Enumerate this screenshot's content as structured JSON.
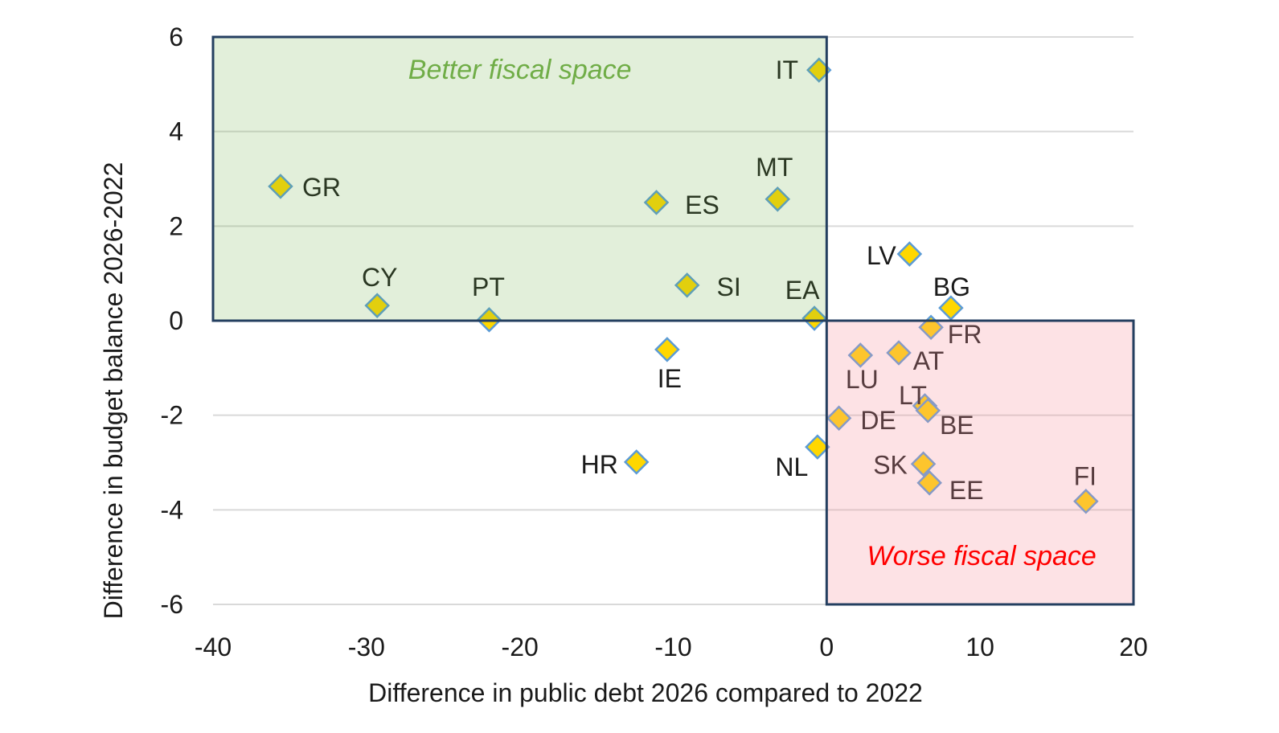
{
  "chart_data": {
    "type": "scatter",
    "title": "",
    "xlabel": "Difference in public debt 2026 compared to 2022",
    "ylabel": "Difference in budget balance 2026-2022",
    "xlim": [
      -40,
      20
    ],
    "ylim": [
      -6,
      6
    ],
    "xticks": [
      -40,
      -30,
      -20,
      -10,
      0,
      10,
      20
    ],
    "yticks": [
      6,
      4,
      2,
      0,
      -2,
      -4,
      -6
    ],
    "grid": "horizontal",
    "legend": "none",
    "marker": "diamond",
    "colors": {
      "marker_fill": "#ffd700",
      "marker_edge": "#5b9bd5",
      "box_border": "#243f60",
      "better_fill": "#e2efda",
      "worse_fill": "#fde2e4",
      "better_text": "#70ad47",
      "worse_text": "#ff0000"
    },
    "regions": [
      {
        "label": "Better fiscal space",
        "x": [
          -40,
          0
        ],
        "y": [
          0,
          6
        ]
      },
      {
        "label": "Worse fiscal space",
        "x": [
          0,
          20
        ],
        "y": [
          -6,
          0
        ]
      }
    ],
    "points": [
      {
        "label": "IT",
        "x": -0.5,
        "y": 5.3
      },
      {
        "label": "GR",
        "x": -35.6,
        "y": 2.84
      },
      {
        "label": "ES",
        "x": -11.1,
        "y": 2.5
      },
      {
        "label": "MT",
        "x": -3.2,
        "y": 2.57
      },
      {
        "label": "LV",
        "x": 5.4,
        "y": 1.41
      },
      {
        "label": "CY",
        "x": -29.3,
        "y": 0.32
      },
      {
        "label": "PT",
        "x": -22.0,
        "y": 0.02
      },
      {
        "label": "SI",
        "x": -9.1,
        "y": 0.75
      },
      {
        "label": "EA",
        "x": -0.8,
        "y": 0.05
      },
      {
        "label": "BG",
        "x": 8.1,
        "y": 0.27
      },
      {
        "label": "FR",
        "x": 6.8,
        "y": -0.14
      },
      {
        "label": "IE",
        "x": -10.4,
        "y": -0.61
      },
      {
        "label": "LU",
        "x": 2.2,
        "y": -0.73
      },
      {
        "label": "AT",
        "x": 4.7,
        "y": -0.68
      },
      {
        "label": "LT",
        "x": 6.4,
        "y": -1.8
      },
      {
        "label": "BE",
        "x": 6.6,
        "y": -1.9
      },
      {
        "label": "DE",
        "x": 0.8,
        "y": -2.06
      },
      {
        "label": "NL",
        "x": -0.6,
        "y": -2.67
      },
      {
        "label": "HR",
        "x": -12.4,
        "y": -2.99
      },
      {
        "label": "SK",
        "x": 6.3,
        "y": -3.03
      },
      {
        "label": "EE",
        "x": 6.7,
        "y": -3.43
      },
      {
        "label": "FI",
        "x": 16.9,
        "y": -3.82
      }
    ]
  }
}
